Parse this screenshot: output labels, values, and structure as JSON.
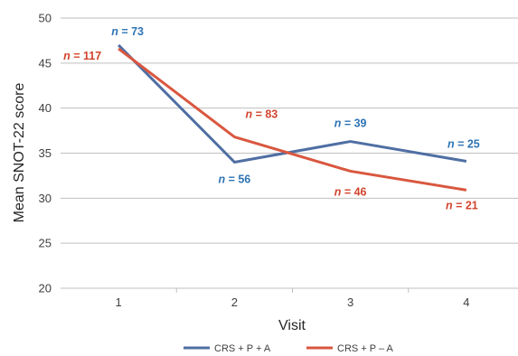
{
  "chart_data": {
    "type": "line",
    "title": "",
    "xlabel": "Visit",
    "ylabel": "Mean SNOT-22 score",
    "categories": [
      "1",
      "2",
      "3",
      "4"
    ],
    "ylim": [
      20,
      50
    ],
    "yticks": [
      "20",
      "25",
      "30",
      "35",
      "40",
      "45",
      "50"
    ],
    "grid": true,
    "legend_position": "bottom",
    "series": [
      {
        "name": "CRS + P + A",
        "color": "#4f6fa3",
        "label_color": "#2e74b5",
        "values": [
          47.0,
          34.0,
          36.3,
          34.1
        ],
        "labels": [
          "n = 73",
          "n = 56",
          "n = 39",
          "n = 25"
        ]
      },
      {
        "name": "CRS + P – A",
        "color": "#d9573f",
        "label_color": "#d2452d",
        "values": [
          46.6,
          36.8,
          33.0,
          30.9
        ],
        "labels": [
          "n = 117",
          "n = 83",
          "n = 46",
          "n = 21"
        ]
      }
    ]
  }
}
